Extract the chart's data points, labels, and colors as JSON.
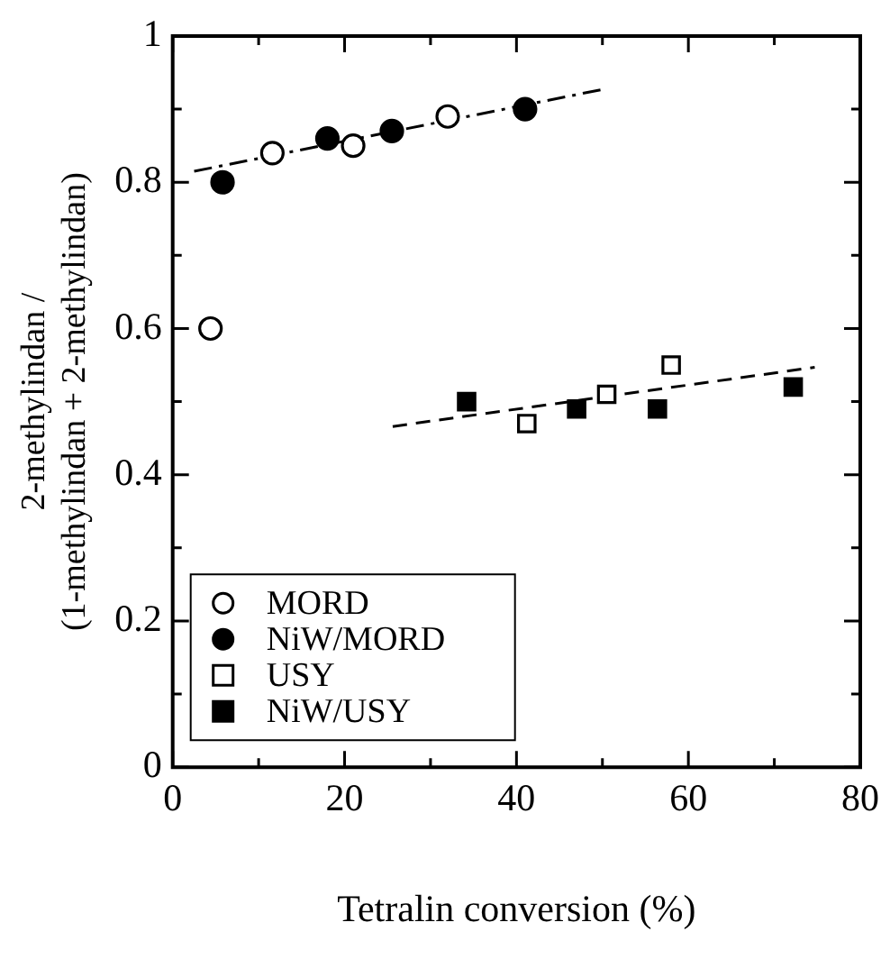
{
  "chart_data": {
    "type": "scatter",
    "xlabel": "Tetralin conversion (%)",
    "ylabel": "2-methylindan / (1-methylindan + 2-methylindan)",
    "xlim": [
      0,
      80
    ],
    "xticks": [
      0,
      {
        "value": 10,
        "label": null
      },
      20,
      {
        "value": 30,
        "label": null
      },
      40,
      {
        "value": 50,
        "label": null
      },
      60,
      {
        "value": 70,
        "label": null
      },
      80
    ],
    "ylim": [
      0,
      1
    ],
    "yticks": [
      0,
      {
        "value": 0.1,
        "label": null
      },
      0.2,
      {
        "value": 0.3,
        "label": null
      },
      0.4,
      {
        "value": 0.5,
        "label": null
      },
      0.6,
      {
        "value": 0.7,
        "label": null
      },
      0.8,
      {
        "value": 0.9,
        "label": null
      },
      1
    ],
    "grid": false,
    "legend": "bottom left",
    "series": [
      {
        "name": "MORD",
        "color": "#ffffff",
        "marker": "circle",
        "x": [
          4.4,
          11.6,
          21,
          32
        ],
        "values": [
          0.6,
          0.84,
          0.85,
          0.89
        ]
      },
      {
        "name": "NiW/MORD",
        "color": "#000000",
        "marker": "circle",
        "x": [
          5.8,
          18,
          25.5,
          41
        ],
        "values": [
          0.8,
          0.86,
          0.87,
          0.9
        ]
      },
      {
        "name": "USY",
        "color": "#ffffff",
        "marker": "square",
        "x": [
          41.2,
          50.5,
          58
        ],
        "values": [
          0.47,
          0.51,
          0.55
        ]
      },
      {
        "name": "NiW/USY",
        "color": "#000000",
        "marker": "square",
        "x": [
          34.2,
          47,
          56.4,
          72.2
        ],
        "values": [
          0.5,
          0.49,
          0.49,
          0.52
        ]
      },
      {
        "type": "line",
        "color": "#000000",
        "marker": "none",
        "line_style": "dashdot",
        "x": [
          2.5,
          50
        ],
        "values": [
          0.815,
          0.927
        ]
      },
      {
        "type": "line",
        "color": "#000000",
        "marker": "none",
        "line_style": "dashed",
        "x": [
          25.6,
          74.7
        ],
        "values": [
          0.466,
          0.547
        ]
      }
    ]
  }
}
